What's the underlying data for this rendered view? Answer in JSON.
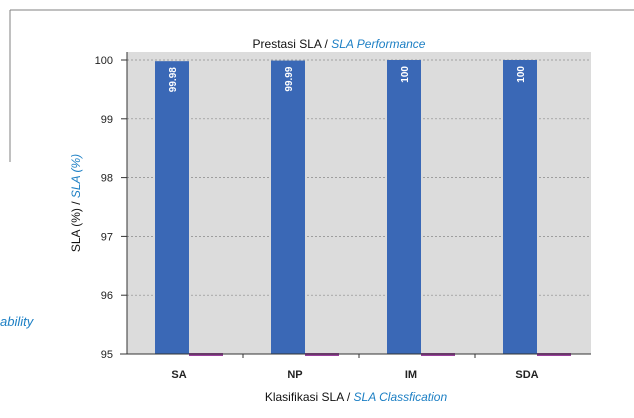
{
  "fragments": {
    "left_italic_text": "ability"
  },
  "chart_data": {
    "type": "bar",
    "title": "Prestasi SLA / ",
    "title_italic": "SLA Performance",
    "xlabel": "Klasifikasi SLA  / ",
    "xlabel_italic": "SLA Classfication",
    "ylabel": "SLA (%) / ",
    "ylabel_italic": "SLA (%)",
    "categories": [
      "SA",
      "NP",
      "IM",
      "SDA"
    ],
    "series": [
      {
        "values": [
          99.98,
          99.99,
          100,
          100
        ],
        "labels": [
          "99.98",
          "99.99",
          "100",
          "100"
        ]
      },
      {
        "values": [
          95,
          95,
          95,
          95
        ]
      }
    ],
    "ylim": [
      95,
      100
    ],
    "yticks": [
      95,
      96,
      97,
      98,
      99,
      100
    ],
    "grid": true,
    "legend": "none",
    "colors": {
      "bar": "#3a68b6",
      "marker": "#9b3f9e",
      "plot_bg": "#dcdcdc",
      "grid": "#8a8a8a",
      "italic_text": "#1c7fc4",
      "frame_line": "#808080"
    }
  }
}
